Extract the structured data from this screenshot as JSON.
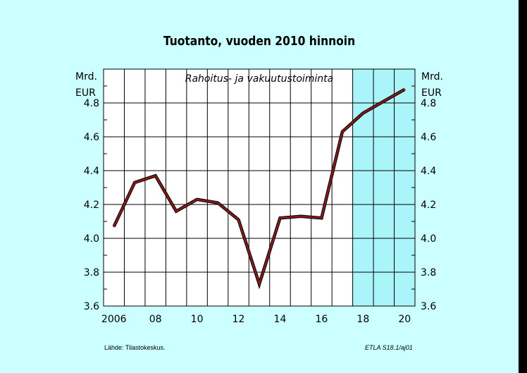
{
  "title": "Tuotanto, vuoden 2010 hinnoin",
  "unit_left": {
    "line1": "Mrd.",
    "line2": "EUR"
  },
  "unit_right": {
    "line1": "Mrd.",
    "line2": "EUR"
  },
  "footer": {
    "source": "Lähde:    Tilastokeskus.",
    "code": "ETLA S18.1/aj01"
  },
  "colors": {
    "page_bg": "#ccffff",
    "plot_bg": "#ffffff",
    "forecast_bg": "#aaf5fa",
    "line": "#8b1a1a",
    "line_shadow": "#000000"
  },
  "chart_data": {
    "type": "line",
    "title": "Tuotanto, vuoden 2010 hinnoin",
    "subtitle": "Rahoitus- ja vakuutustoiminta",
    "ylabel": "Mrd. EUR",
    "xlabel": "",
    "xlim": [
      2005.5,
      2020.5
    ],
    "ylim": [
      3.6,
      5.0
    ],
    "yticks": [
      3.6,
      3.8,
      4.0,
      4.2,
      4.4,
      4.6,
      4.8
    ],
    "ytick_labels": [
      "3.6",
      "3.8",
      "4.0",
      "4.2",
      "4.4",
      "4.6",
      "4.8"
    ],
    "xticks": [
      2006,
      2008,
      2010,
      2012,
      2014,
      2016,
      2018,
      2020
    ],
    "xtick_labels": [
      "2006",
      "08",
      "10",
      "12",
      "14",
      "16",
      "18",
      "20"
    ],
    "grid": true,
    "forecast_from": 2017.5,
    "series": [
      {
        "x": [
          2006,
          2007,
          2008,
          2009,
          2010,
          2011,
          2012,
          2013,
          2014,
          2015,
          2016,
          2017,
          2018,
          2019,
          2020
        ],
        "values": [
          4.07,
          4.33,
          4.37,
          4.16,
          4.23,
          4.21,
          4.11,
          3.73,
          4.12,
          4.13,
          4.12,
          4.63,
          4.74,
          4.81,
          4.88
        ]
      }
    ]
  }
}
